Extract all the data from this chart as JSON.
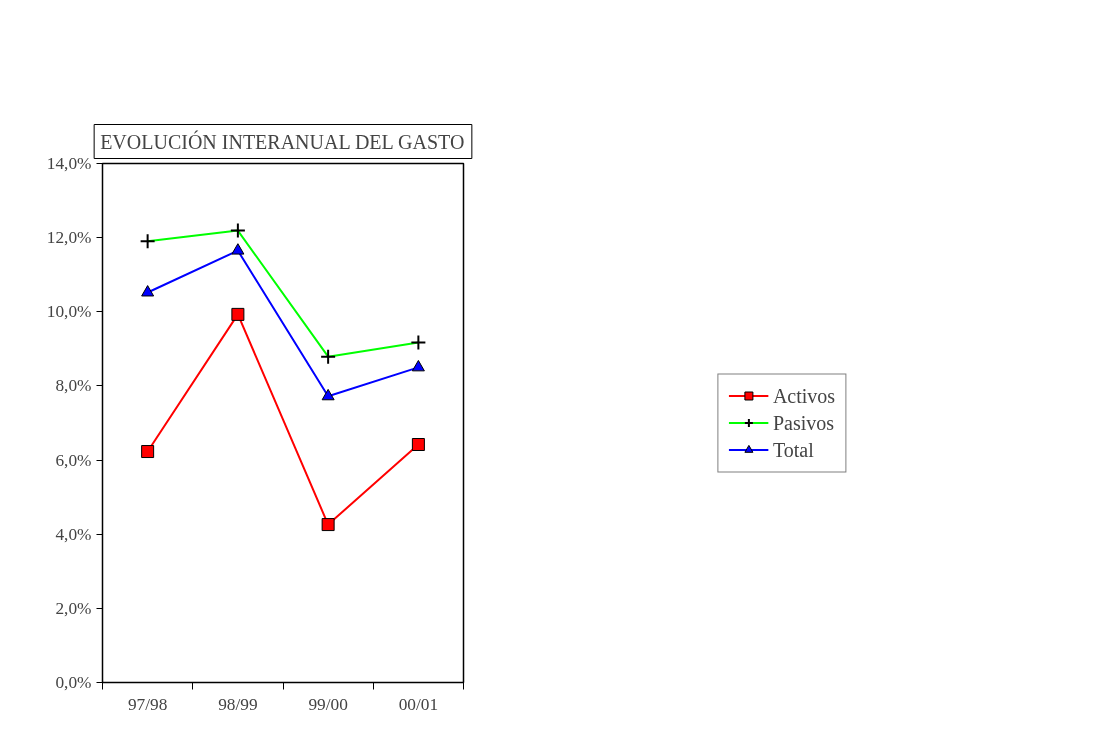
{
  "chart_data": {
    "type": "line",
    "title": "EVOLUCIÓN INTERANUAL DEL GASTO",
    "categories": [
      "97/98",
      "98/99",
      "99/00",
      "00/01"
    ],
    "series": [
      {
        "name": "Activos",
        "color": "#ff0000",
        "marker": "square",
        "values": [
          6.23,
          9.93,
          4.26,
          6.42
        ]
      },
      {
        "name": "Pasivos",
        "color": "#00ff00",
        "marker": "cross",
        "values": [
          11.9,
          12.19,
          8.79,
          9.17
        ]
      },
      {
        "name": "Total",
        "color": "#0000ff",
        "marker": "triangle",
        "values": [
          10.52,
          11.65,
          7.72,
          8.5
        ]
      }
    ],
    "ylim": [
      0,
      14
    ],
    "yticks": [
      {
        "value": 0,
        "label": "0,0%"
      },
      {
        "value": 2,
        "label": "2,0%"
      },
      {
        "value": 4,
        "label": "4,0%"
      },
      {
        "value": 6,
        "label": "6,0%"
      },
      {
        "value": 8,
        "label": "8,0%"
      },
      {
        "value": 10,
        "label": "10,0%"
      },
      {
        "value": 12,
        "label": "12,0%"
      },
      {
        "value": 14,
        "label": "14,0%"
      }
    ],
    "grid": false,
    "legend": "right",
    "line_style": "solid"
  }
}
